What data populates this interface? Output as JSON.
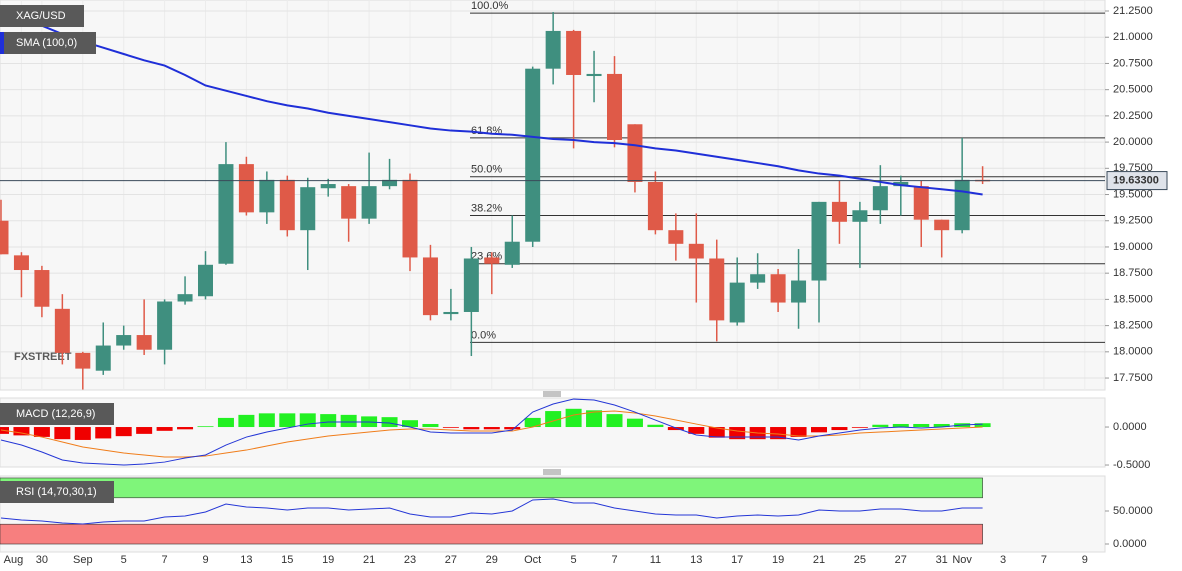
{
  "chart_data": [
    {
      "type": "candlestick",
      "name": "XAG/USD",
      "watermark": "FXSTREET",
      "categories": [
        null,
        "Aug",
        "30",
        null,
        "Sep",
        null,
        "5",
        null,
        "7",
        null,
        "9",
        null,
        "13",
        null,
        "15",
        null,
        "19",
        null,
        "21",
        null,
        "23",
        null,
        "27",
        null,
        "29",
        null,
        "Oct",
        null,
        "5",
        null,
        "7",
        null,
        "11",
        null,
        "13",
        null,
        "17",
        null,
        "19",
        null,
        "21",
        null,
        "25",
        null,
        "27",
        null,
        "31",
        "Nov",
        null,
        "3",
        null,
        "7",
        null,
        "9"
      ],
      "open": [
        19.25,
        18.92,
        18.78,
        18.41,
        17.99,
        17.82,
        18.06,
        18.16,
        18.02,
        18.48,
        18.53,
        18.84,
        19.79,
        19.33,
        19.64,
        19.16,
        19.56,
        19.58,
        19.27,
        19.58,
        19.64,
        18.9,
        18.36,
        18.38,
        18.9,
        18.83,
        19.05,
        20.7,
        21.06,
        20.63,
        20.65,
        20.17,
        19.62,
        19.16,
        19.03,
        18.89,
        18.28,
        18.66,
        18.74,
        18.47,
        18.68,
        19.43,
        19.24,
        19.35,
        19.58,
        19.58,
        19.26,
        19.16,
        19.64,
        null,
        null,
        null,
        null,
        null
      ],
      "high": [
        19.45,
        18.95,
        18.82,
        18.55,
        18.0,
        18.28,
        18.25,
        18.5,
        18.5,
        18.72,
        18.96,
        20.0,
        19.86,
        19.72,
        19.68,
        19.66,
        19.65,
        19.6,
        19.9,
        19.84,
        19.7,
        19.02,
        18.6,
        19.0,
        18.95,
        19.3,
        20.72,
        21.24,
        21.07,
        20.87,
        20.82,
        20.17,
        19.72,
        19.32,
        19.32,
        19.07,
        18.9,
        18.94,
        18.79,
        18.98,
        19.43,
        19.63,
        19.43,
        19.78,
        19.68,
        19.63,
        19.26,
        20.04,
        19.77,
        null,
        null,
        null,
        null,
        null
      ],
      "low": [
        18.93,
        18.52,
        18.33,
        17.88,
        17.64,
        17.78,
        18.02,
        17.97,
        17.88,
        18.45,
        18.5,
        18.83,
        19.3,
        19.22,
        19.1,
        18.78,
        19.48,
        19.05,
        19.22,
        19.55,
        18.77,
        18.3,
        18.3,
        17.96,
        18.55,
        18.8,
        19.0,
        20.55,
        19.94,
        20.38,
        19.95,
        19.52,
        19.12,
        18.87,
        18.47,
        18.1,
        18.25,
        18.6,
        18.38,
        18.22,
        18.28,
        19.03,
        18.8,
        19.22,
        19.3,
        19.0,
        18.9,
        19.13,
        19.6,
        null,
        null,
        null,
        null,
        null
      ],
      "close": [
        18.93,
        18.78,
        18.43,
        17.99,
        17.84,
        18.06,
        18.16,
        18.02,
        18.48,
        18.55,
        18.83,
        19.79,
        19.33,
        19.64,
        19.16,
        19.57,
        19.6,
        19.27,
        19.58,
        19.64,
        18.9,
        18.35,
        18.38,
        18.89,
        18.84,
        19.05,
        20.7,
        21.06,
        20.64,
        20.65,
        20.02,
        19.62,
        19.16,
        19.03,
        18.89,
        18.3,
        18.66,
        18.74,
        18.47,
        18.68,
        19.43,
        19.24,
        19.35,
        19.58,
        19.62,
        19.26,
        19.16,
        19.64,
        19.633,
        null,
        null,
        null,
        null,
        null
      ],
      "up_color": "#3f8f7f",
      "down_color": "#df5a48",
      "series": [
        {
          "name": "SMA (100,0)",
          "color": "#1f2fd8",
          "values": [
            21.28,
            21.19,
            21.11,
            21.03,
            20.96,
            20.9,
            20.84,
            20.78,
            20.73,
            20.64,
            20.54,
            20.49,
            20.44,
            20.39,
            20.35,
            20.32,
            20.28,
            20.25,
            20.22,
            20.19,
            20.16,
            20.13,
            20.11,
            20.1,
            20.08,
            20.07,
            20.05,
            20.03,
            20.02,
            20.0,
            19.99,
            19.97,
            19.94,
            19.92,
            19.89,
            19.86,
            19.83,
            19.8,
            19.77,
            19.73,
            19.7,
            19.68,
            19.65,
            19.62,
            19.59,
            19.57,
            19.55,
            19.53,
            19.5,
            null,
            null,
            null,
            null,
            null
          ]
        }
      ],
      "fib_levels": [
        {
          "label": "100.0%",
          "value": 21.23
        },
        {
          "label": "61.8%",
          "value": 20.04
        },
        {
          "label": "50.0%",
          "value": 19.67
        },
        {
          "label": "38.2%",
          "value": 19.3
        },
        {
          "label": "23.6%",
          "value": 18.84
        },
        {
          "label": "0.0%",
          "value": 18.09
        }
      ],
      "last_price": {
        "value": 19.633,
        "label": "19.63300"
      },
      "ylim": [
        17.636,
        21.355
      ],
      "yticks": [
        {
          "value": 21.25,
          "label": "21.2500"
        },
        {
          "value": 21.0,
          "label": "21.0000"
        },
        {
          "value": 20.75,
          "label": "20.7500"
        },
        {
          "value": 20.5,
          "label": "20.5000"
        },
        {
          "value": 20.25,
          "label": "20.2500"
        },
        {
          "value": 20.0,
          "label": "20.0000"
        },
        {
          "value": 19.75,
          "label": "19.7500"
        },
        {
          "value": 19.5,
          "label": "19.5000"
        },
        {
          "value": 19.25,
          "label": "19.2500"
        },
        {
          "value": 19.0,
          "label": "19.0000"
        },
        {
          "value": 18.75,
          "label": "18.7500"
        },
        {
          "value": 18.5,
          "label": "18.5000"
        },
        {
          "value": 18.25,
          "label": "18.2500"
        },
        {
          "value": 18.0,
          "label": "18.0000"
        },
        {
          "value": 17.75,
          "label": "17.7500"
        }
      ],
      "grid": true
    },
    {
      "type": "macd",
      "title": "MACD (12,26,9)",
      "histogram": {
        "up_color": "#22f022",
        "down_color": "#f00000",
        "values": [
          -0.09,
          -0.11,
          -0.13,
          -0.16,
          -0.17,
          -0.15,
          -0.12,
          -0.09,
          -0.05,
          -0.03,
          0.01,
          0.12,
          0.16,
          0.18,
          0.18,
          0.18,
          0.17,
          0.16,
          0.14,
          0.13,
          0.09,
          0.04,
          -0.01,
          -0.03,
          -0.03,
          -0.03,
          0.12,
          0.21,
          0.24,
          0.22,
          0.17,
          0.11,
          0.03,
          -0.04,
          -0.09,
          -0.14,
          -0.16,
          -0.16,
          -0.16,
          -0.13,
          -0.07,
          -0.04,
          -0.01,
          0.03,
          0.04,
          0.04,
          0.04,
          0.05,
          0.05,
          null,
          null,
          null,
          null,
          null
        ]
      },
      "macd_line": {
        "color": "#2436d6",
        "values": [
          -0.171,
          -0.237,
          -0.329,
          -0.434,
          -0.474,
          -0.487,
          -0.5,
          -0.487,
          -0.461,
          -0.408,
          -0.368,
          -0.237,
          -0.132,
          -0.066,
          -0.013,
          0.039,
          0.066,
          0.066,
          0.066,
          0.053,
          0,
          -0.066,
          -0.079,
          -0.079,
          -0.079,
          -0.039,
          0.197,
          0.303,
          0.368,
          0.355,
          0.29,
          0.197,
          0.092,
          -0.013,
          -0.105,
          -0.132,
          -0.132,
          -0.132,
          -0.132,
          -0.171,
          -0.118,
          -0.079,
          -0.039,
          -0.013,
          0,
          -0.013,
          0,
          0.026,
          0.039,
          null,
          null,
          null,
          null,
          null
        ]
      },
      "signal_line": {
        "color": "#f07d1a",
        "values": [
          -0.039,
          -0.079,
          -0.132,
          -0.197,
          -0.263,
          -0.303,
          -0.342,
          -0.368,
          -0.395,
          -0.395,
          -0.382,
          -0.342,
          -0.303,
          -0.25,
          -0.197,
          -0.158,
          -0.118,
          -0.092,
          -0.066,
          -0.039,
          -0.026,
          -0.026,
          -0.039,
          -0.053,
          -0.053,
          -0.053,
          0,
          0.079,
          0.158,
          0.197,
          0.211,
          0.184,
          0.145,
          0.092,
          0.039,
          -0.013,
          -0.053,
          -0.079,
          -0.092,
          -0.118,
          -0.118,
          -0.105,
          -0.079,
          -0.066,
          -0.053,
          -0.039,
          -0.026,
          -0.013,
          0,
          null,
          null,
          null,
          null,
          null
        ]
      },
      "ylim": [
        -0.526,
        0.382
      ],
      "yticks": [
        {
          "value": 0,
          "label": "0.0000"
        },
        {
          "value": -0.5,
          "label": "-0.5000"
        }
      ]
    },
    {
      "type": "line",
      "title": "RSI (14,70,30,1)",
      "color": "#2436d6",
      "values": [
        39.4,
        36.4,
        34.8,
        31.8,
        30.3,
        33.3,
        34.8,
        34.8,
        40.9,
        42.4,
        48.5,
        60.6,
        56.1,
        54.5,
        51.5,
        54.5,
        54.5,
        51.5,
        53.0,
        54.5,
        45.5,
        40.9,
        40.9,
        47.0,
        45.5,
        50.0,
        66.7,
        68.2,
        62.1,
        62.1,
        54.5,
        50.0,
        45.5,
        43.9,
        43.9,
        39.4,
        42.4,
        43.9,
        42.4,
        43.9,
        51.5,
        50.0,
        50.0,
        53.0,
        53.0,
        50.0,
        50.0,
        54.5,
        54.5,
        null,
        null,
        null,
        null,
        null
      ],
      "bands": [
        {
          "from": 70,
          "to": 100,
          "color": "#7ff57a"
        },
        {
          "from": 0,
          "to": 30,
          "color": "#f77f7f"
        }
      ],
      "ylim": [
        -12.1,
        103
      ],
      "yticks": [
        {
          "value": 50,
          "label": "50.0000"
        },
        {
          "value": 0,
          "label": "0.0000"
        }
      ]
    }
  ]
}
